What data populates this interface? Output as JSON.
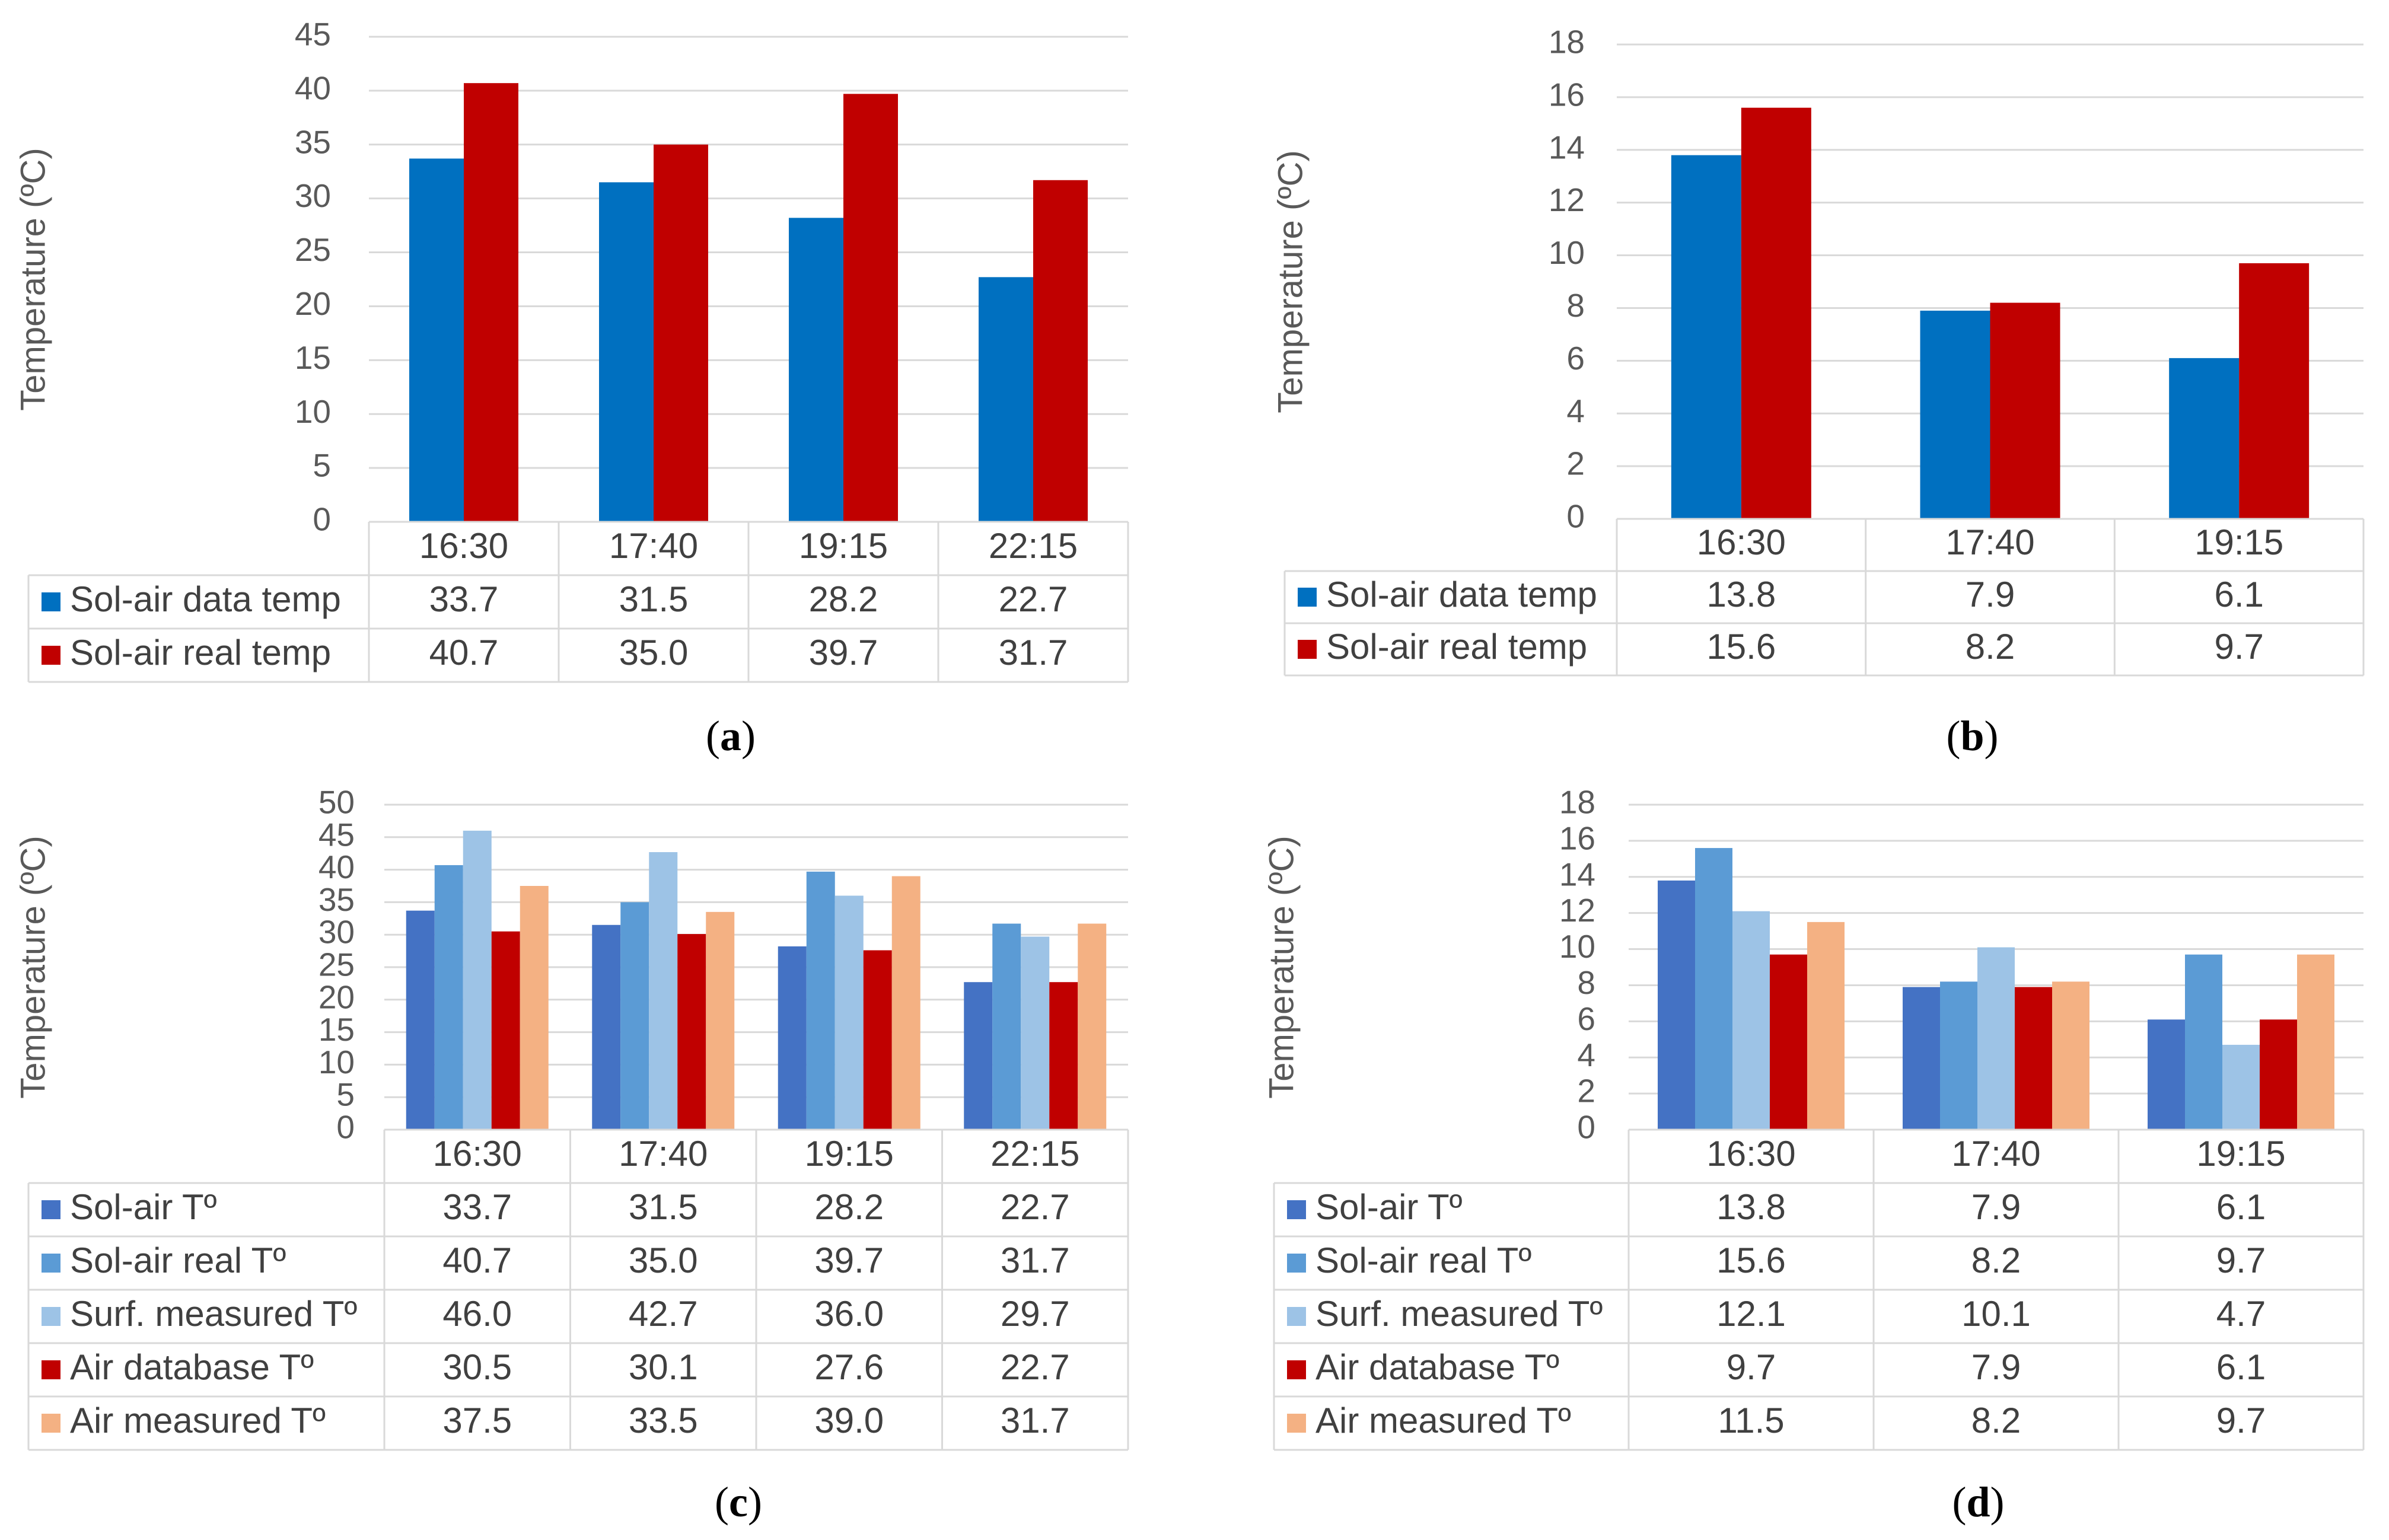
{
  "chart_data": [
    {
      "id": "a",
      "type": "bar",
      "panel_label": "a",
      "ylabel": "Temperature (ºC)",
      "ylim": [
        0,
        45
      ],
      "ystep": 5,
      "categories": [
        "16:30",
        "17:40",
        "19:15",
        "22:15"
      ],
      "series": [
        {
          "name": "Sol-air data temp",
          "color": "#0070C0",
          "values": [
            33.7,
            31.5,
            28.2,
            22.7
          ],
          "labels": [
            "33.7",
            "31.5",
            "28.2",
            "22.7"
          ]
        },
        {
          "name": "Sol-air real temp",
          "color": "#C00000",
          "values": [
            40.7,
            35.0,
            39.7,
            31.7
          ],
          "labels": [
            "40.7",
            "35.0",
            "39.7",
            "31.7"
          ]
        }
      ]
    },
    {
      "id": "b",
      "type": "bar",
      "panel_label": "b",
      "ylabel": "Temperature (ºC)",
      "ylim": [
        0,
        18
      ],
      "ystep": 2,
      "categories": [
        "16:30",
        "17:40",
        "19:15"
      ],
      "series": [
        {
          "name": "Sol-air data temp",
          "color": "#0070C0",
          "values": [
            13.8,
            7.9,
            6.1
          ],
          "labels": [
            "13.8",
            "7.9",
            "6.1"
          ]
        },
        {
          "name": "Sol-air real temp",
          "color": "#C00000",
          "values": [
            15.6,
            8.2,
            9.7
          ],
          "labels": [
            "15.6",
            "8.2",
            "9.7"
          ]
        }
      ]
    },
    {
      "id": "c",
      "type": "bar",
      "panel_label": "c",
      "ylabel": "Temperature (ºC)",
      "ylim": [
        0,
        50
      ],
      "ystep": 5,
      "categories": [
        "16:30",
        "17:40",
        "19:15",
        "22:15"
      ],
      "series": [
        {
          "name": "Sol-air Tº",
          "color": "#4472C4",
          "values": [
            33.7,
            31.5,
            28.2,
            22.7
          ],
          "labels": [
            "33.7",
            "31.5",
            "28.2",
            "22.7"
          ]
        },
        {
          "name": "Sol-air real Tº",
          "color": "#5B9BD5",
          "values": [
            40.7,
            35.0,
            39.7,
            31.7
          ],
          "labels": [
            "40.7",
            "35.0",
            "39.7",
            "31.7"
          ]
        },
        {
          "name": "Surf. measured Tº",
          "color": "#9DC3E6",
          "values": [
            46.0,
            42.7,
            36.0,
            29.7
          ],
          "labels": [
            "46.0",
            "42.7",
            "36.0",
            "29.7"
          ]
        },
        {
          "name": "Air database Tº",
          "color": "#C00000",
          "values": [
            30.5,
            30.1,
            27.6,
            22.7
          ],
          "labels": [
            "30.5",
            "30.1",
            "27.6",
            "22.7"
          ]
        },
        {
          "name": "Air measured Tº",
          "color": "#F4B183",
          "values": [
            37.5,
            33.5,
            39.0,
            31.7
          ],
          "labels": [
            "37.5",
            "33.5",
            "39.0",
            "31.7"
          ]
        }
      ]
    },
    {
      "id": "d",
      "type": "bar",
      "panel_label": "d",
      "ylabel": "Temperature (ºC)",
      "ylim": [
        0,
        18
      ],
      "ystep": 2,
      "categories": [
        "16:30",
        "17:40",
        "19:15"
      ],
      "series": [
        {
          "name": "Sol-air Tº",
          "color": "#4472C4",
          "values": [
            13.8,
            7.9,
            6.1
          ],
          "labels": [
            "13.8",
            "7.9",
            "6.1"
          ]
        },
        {
          "name": "Sol-air real Tº",
          "color": "#5B9BD5",
          "values": [
            15.6,
            8.2,
            9.7
          ],
          "labels": [
            "15.6",
            "8.2",
            "9.7"
          ]
        },
        {
          "name": "Surf. measured Tº",
          "color": "#9DC3E6",
          "values": [
            12.1,
            10.1,
            4.7
          ],
          "labels": [
            "12.1",
            "10.1",
            "4.7"
          ]
        },
        {
          "name": "Air database Tº",
          "color": "#C00000",
          "values": [
            9.7,
            7.9,
            6.1
          ],
          "labels": [
            "9.7",
            "7.9",
            "6.1"
          ]
        },
        {
          "name": "Air measured Tº",
          "color": "#F4B183",
          "values": [
            11.5,
            8.2,
            9.7
          ],
          "labels": [
            "11.5",
            "8.2",
            "9.7"
          ]
        }
      ]
    }
  ]
}
